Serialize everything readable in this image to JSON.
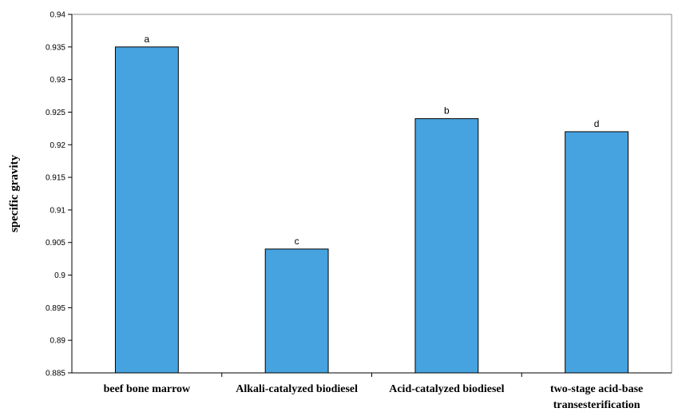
{
  "chart_data": {
    "type": "bar",
    "title": "",
    "xlabel": "",
    "ylabel": "specific gravity",
    "ylim": [
      0.885,
      0.94
    ],
    "ytick_step": 0.005,
    "yticks": [
      "0.885",
      "0.89",
      "0.895",
      "0.9",
      "0.905",
      "0.91",
      "0.915",
      "0.92",
      "0.925",
      "0.93",
      "0.935",
      "0.94"
    ],
    "categories": [
      [
        "beef bone marrow"
      ],
      [
        "Alkali-catalyzed biodiesel"
      ],
      [
        "Acid-catalyzed biodiesel"
      ],
      [
        "two-stage acid-base",
        "transesterification"
      ]
    ],
    "values": [
      0.935,
      0.904,
      0.924,
      0.922
    ],
    "data_labels": [
      "a",
      "c",
      "b",
      "d"
    ],
    "bar_color": "#46A3E0",
    "grid": false,
    "legend": "none"
  }
}
